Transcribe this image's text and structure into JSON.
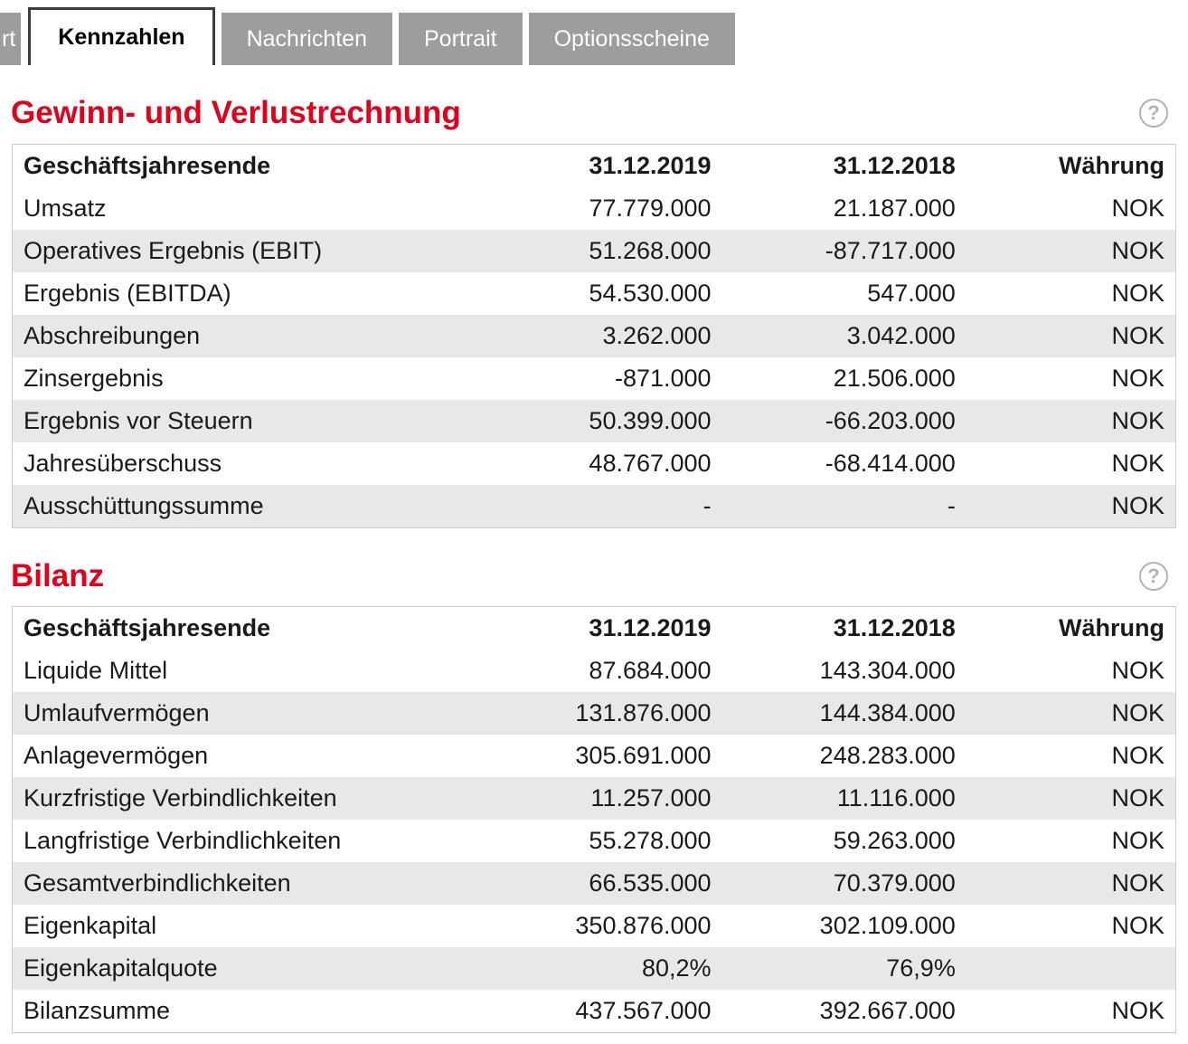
{
  "colors": {
    "accent_red": "#e2001a",
    "tab_gray": "#9d9d9d",
    "row_alt_gray": "#e8e8e8"
  },
  "tabs": [
    {
      "label": "rt",
      "active": false
    },
    {
      "label": "Kennzahlen",
      "active": true
    },
    {
      "label": "Nachrichten",
      "active": false
    },
    {
      "label": "Portrait",
      "active": false
    },
    {
      "label": "Optionsscheine",
      "active": false
    }
  ],
  "help_icon": {
    "glyph": "?"
  },
  "sections": [
    {
      "title": "Gewinn- und Verlustrechnung",
      "headers": [
        "Geschäftsjahresende",
        "31.12.2019",
        "31.12.2018",
        "Währung"
      ],
      "rows": [
        {
          "label": "Umsatz",
          "v1": "77.779.000",
          "v2": "21.187.000",
          "currency": "NOK"
        },
        {
          "label": "Operatives Ergebnis (EBIT)",
          "v1": "51.268.000",
          "v2": "-87.717.000",
          "currency": "NOK"
        },
        {
          "label": "Ergebnis (EBITDA)",
          "v1": "54.530.000",
          "v2": "547.000",
          "currency": "NOK"
        },
        {
          "label": "Abschreibungen",
          "v1": "3.262.000",
          "v2": "3.042.000",
          "currency": "NOK"
        },
        {
          "label": "Zinsergebnis",
          "v1": "-871.000",
          "v2": "21.506.000",
          "currency": "NOK"
        },
        {
          "label": "Ergebnis vor Steuern",
          "v1": "50.399.000",
          "v2": "-66.203.000",
          "currency": "NOK"
        },
        {
          "label": "Jahresüberschuss",
          "v1": "48.767.000",
          "v2": "-68.414.000",
          "currency": "NOK"
        },
        {
          "label": "Ausschüttungssumme",
          "v1": "-",
          "v2": "-",
          "currency": "NOK"
        }
      ]
    },
    {
      "title": "Bilanz",
      "headers": [
        "Geschäftsjahresende",
        "31.12.2019",
        "31.12.2018",
        "Währung"
      ],
      "rows": [
        {
          "label": "Liquide Mittel",
          "v1": "87.684.000",
          "v2": "143.304.000",
          "currency": "NOK"
        },
        {
          "label": "Umlaufvermögen",
          "v1": "131.876.000",
          "v2": "144.384.000",
          "currency": "NOK"
        },
        {
          "label": "Anlagevermögen",
          "v1": "305.691.000",
          "v2": "248.283.000",
          "currency": "NOK"
        },
        {
          "label": "Kurzfristige Verbindlichkeiten",
          "v1": "11.257.000",
          "v2": "11.116.000",
          "currency": "NOK"
        },
        {
          "label": "Langfristige Verbindlichkeiten",
          "v1": "55.278.000",
          "v2": "59.263.000",
          "currency": "NOK"
        },
        {
          "label": "Gesamtverbindlichkeiten",
          "v1": "66.535.000",
          "v2": "70.379.000",
          "currency": "NOK"
        },
        {
          "label": "Eigenkapital",
          "v1": "350.876.000",
          "v2": "302.109.000",
          "currency": "NOK"
        },
        {
          "label": "Eigenkapitalquote",
          "v1": "80,2%",
          "v2": "76,9%",
          "currency": ""
        },
        {
          "label": "Bilanzsumme",
          "v1": "437.567.000",
          "v2": "392.667.000",
          "currency": "NOK"
        }
      ]
    }
  ]
}
